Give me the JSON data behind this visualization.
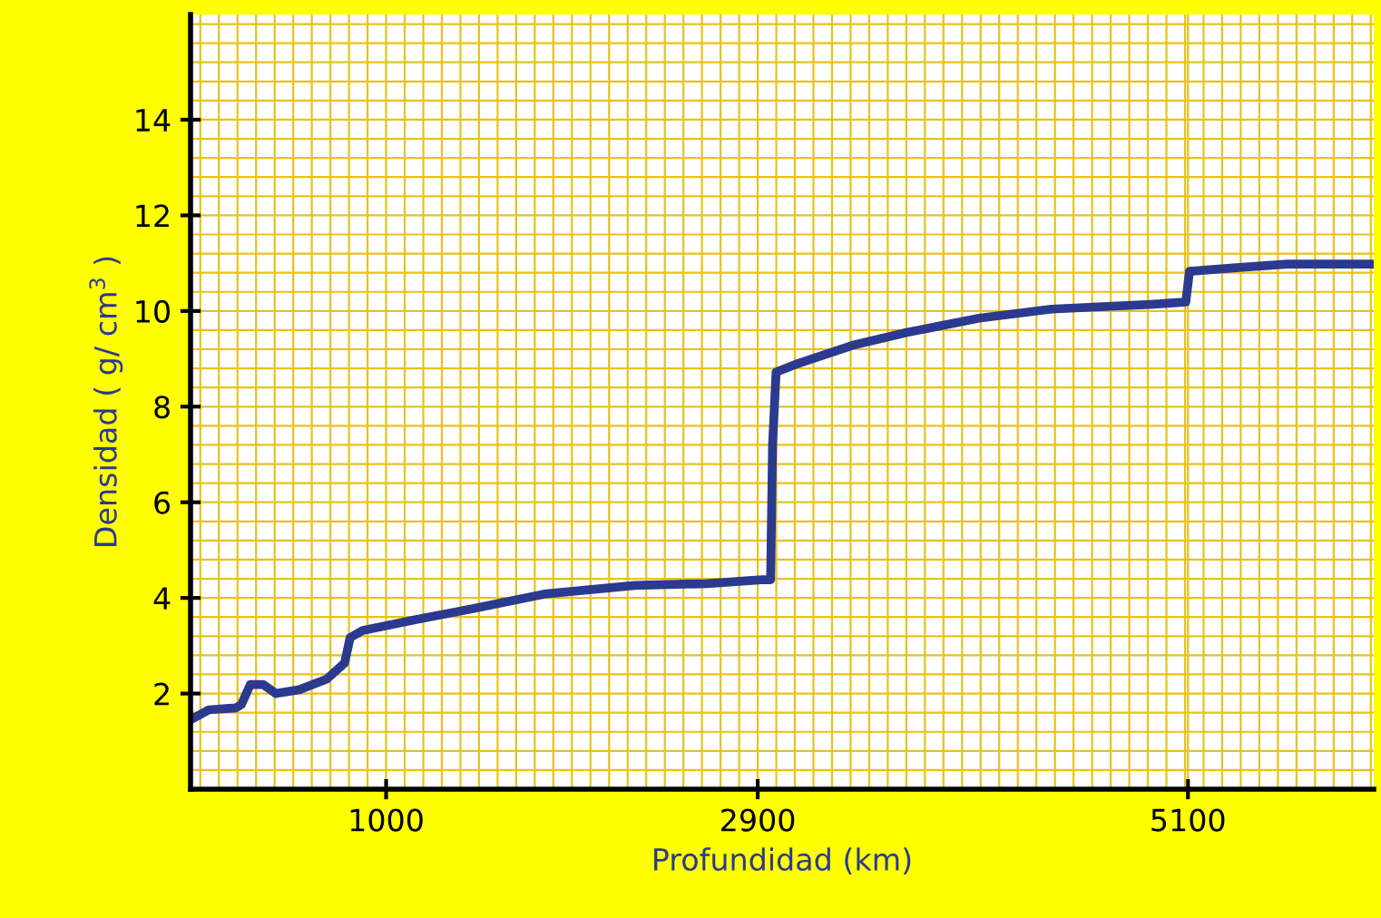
{
  "chart_data": {
    "type": "line",
    "xlabel": "Profundidad (km)",
    "ylabel": "Densidad ( g/ cm$^{3}$ )",
    "series": [
      {
        "color": "#2b3a8f",
        "x": [
          9,
          93,
          232,
          260,
          306,
          371,
          436,
          556,
          695,
          788,
          816,
          881,
          1159,
          1437,
          1808,
          2271,
          2642,
          2920,
          2966,
          2976,
          2994,
          3105,
          3383,
          3662,
          4032,
          4403,
          4959,
          5089,
          5108,
          5331,
          5609,
          6044
        ],
        "values": [
          1.47,
          1.66,
          1.7,
          1.77,
          2.19,
          2.19,
          2.0,
          2.08,
          2.3,
          2.64,
          3.17,
          3.32,
          3.55,
          3.77,
          4.08,
          4.26,
          4.3,
          4.38,
          4.38,
          7.2,
          8.72,
          8.9,
          9.28,
          9.55,
          9.85,
          10.04,
          10.15,
          10.19,
          10.83,
          10.9,
          10.98,
          10.98
        ]
      }
    ],
    "xlim": [
      0,
      6050
    ],
    "xticks": [
      1000,
      2900,
      5100
    ],
    "ylim": [
      0,
      16.2
    ],
    "yticks": [
      2,
      4,
      6,
      8,
      10,
      12,
      14
    ],
    "grid": true,
    "marker": "none",
    "line_style": "solid"
  }
}
